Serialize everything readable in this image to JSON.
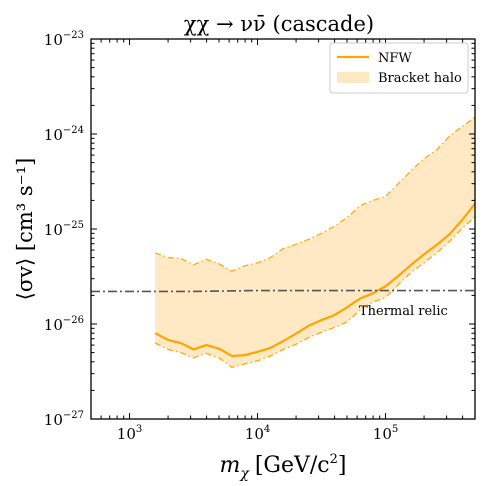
{
  "chart_data": {
    "type": "line",
    "title": "χχ → νν̄ (cascade)",
    "xlabel": "m",
    "xlabel_sub": "χ",
    "xlabel_unit": "[GeV/c",
    "xlabel_unit_sup": "2",
    "xlabel_unit_end": "]",
    "ylabel": "⟨σv⟩ [cm³ s⁻¹]",
    "x_scale": "log",
    "y_scale": "log",
    "xlim": [
      500,
      500000
    ],
    "ylim": [
      1e-27,
      1e-23
    ],
    "x_ticks": [
      {
        "value": 1000,
        "base": "10",
        "exp": "3"
      },
      {
        "value": 10000,
        "base": "10",
        "exp": "4"
      },
      {
        "value": 100000,
        "base": "10",
        "exp": "5"
      }
    ],
    "y_ticks": [
      {
        "value": 1e-27,
        "base": "10",
        "exp": "−27"
      },
      {
        "value": 1e-26,
        "base": "10",
        "exp": "−26"
      },
      {
        "value": 1e-25,
        "base": "10",
        "exp": "−25"
      },
      {
        "value": 1e-24,
        "base": "10",
        "exp": "−24"
      },
      {
        "value": 1e-23,
        "base": "10",
        "exp": "−23"
      }
    ],
    "legend_position": "top-right",
    "series": [
      {
        "name": "NFW",
        "style": "solid",
        "color": "#ffa500",
        "x": [
          1585,
          2000,
          2512,
          3162,
          3981,
          5012,
          6310,
          7943,
          10000,
          12589,
          15849,
          19953,
          25119,
          31623,
          39811,
          50119,
          63096,
          79433,
          100000,
          125893,
          158489,
          199526,
          251189,
          316228,
          398107,
          501187
        ],
        "y": [
          8e-27,
          6.8e-27,
          6.3e-27,
          5.4e-27,
          6e-27,
          5.5e-27,
          4.6e-27,
          4.7e-27,
          5.1e-27,
          5.6e-27,
          6.6e-27,
          7.9e-27,
          9.6e-27,
          1.1e-26,
          1.24e-26,
          1.5e-26,
          1.85e-26,
          2.1e-26,
          2.5e-26,
          3.2e-26,
          4.2e-26,
          5.4e-26,
          6.8e-26,
          8.8e-26,
          1.25e-25,
          1.85e-25
        ]
      },
      {
        "name": "Bracket halo",
        "style": "band",
        "color": "#ffa500",
        "fill": "#ffe8c4",
        "x": [
          1585,
          2000,
          2512,
          3162,
          3981,
          5012,
          6310,
          7943,
          10000,
          12589,
          15849,
          19953,
          25119,
          31623,
          39811,
          50119,
          63096,
          79433,
          100000,
          125893,
          158489,
          199526,
          251189,
          316228,
          398107,
          501187
        ],
        "upper": [
          5.6e-26,
          5e-26,
          4.9e-26,
          4.2e-26,
          4.8e-26,
          4.3e-26,
          3.6e-26,
          4.1e-26,
          4.4e-26,
          5e-26,
          6.2e-26,
          6.9e-26,
          7.8e-26,
          9e-26,
          1.07e-25,
          1.32e-25,
          1.75e-25,
          2e-25,
          2.2e-25,
          3e-25,
          4.1e-25,
          5.5e-25,
          6.8e-25,
          9.5e-25,
          1.2e-24,
          1.5e-24
        ],
        "lower": [
          6.3e-27,
          5.4e-27,
          5e-27,
          4.4e-27,
          4.9e-27,
          4.4e-27,
          3.5e-27,
          3.8e-27,
          4.1e-27,
          4.6e-27,
          5.4e-27,
          6.1e-27,
          7.2e-27,
          8.2e-27,
          9.2e-27,
          1.05e-26,
          1.4e-26,
          1.7e-26,
          1.9e-26,
          2.6e-26,
          3.5e-26,
          4.4e-26,
          5.6e-26,
          7.4e-26,
          1.02e-25,
          1.35e-25
        ]
      }
    ],
    "reference_line": {
      "label": "Thermal relic",
      "color": "#555555",
      "x": [
        500,
        1000,
        3000,
        10000,
        100000,
        500000
      ],
      "y": [
        2.2e-26,
        2.2e-26,
        2.2e-26,
        2.25e-26,
        2.25e-26,
        2.25e-26
      ]
    }
  }
}
